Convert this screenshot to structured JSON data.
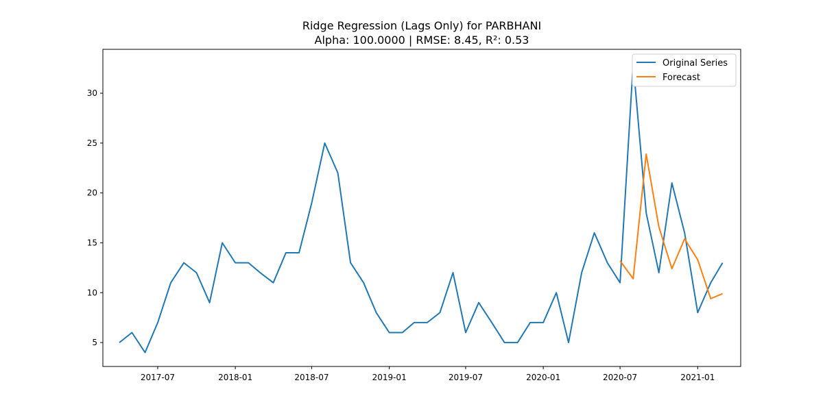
{
  "chart_data": {
    "type": "line",
    "title": "Ridge Regression (Lags Only) for PARBHANI",
    "subtitle": "Alpha: 100.0000 | RMSE: 8.45, R²: 0.53",
    "xlabel": "",
    "ylabel": "",
    "x_ticks": [
      "2017-07",
      "2018-01",
      "2018-07",
      "2019-01",
      "2019-07",
      "2020-01",
      "2020-07",
      "2021-01"
    ],
    "y_ticks": [
      5,
      10,
      15,
      20,
      25,
      30
    ],
    "ylim": [
      2.6,
      34.4
    ],
    "xlim": [
      "2017-02-21",
      "2021-04-13"
    ],
    "grid": false,
    "legend_position": "upper right",
    "series": [
      {
        "name": "Original Series",
        "color": "#1f77b4",
        "x": [
          "2017-04-01",
          "2017-05-01",
          "2017-06-01",
          "2017-07-01",
          "2017-08-01",
          "2017-09-01",
          "2017-10-01",
          "2017-11-01",
          "2017-12-01",
          "2018-01-01",
          "2018-02-01",
          "2018-03-01",
          "2018-04-01",
          "2018-05-01",
          "2018-06-01",
          "2018-07-01",
          "2018-08-01",
          "2018-09-01",
          "2018-10-01",
          "2018-11-01",
          "2018-12-01",
          "2019-01-01",
          "2019-02-01",
          "2019-03-01",
          "2019-04-01",
          "2019-05-01",
          "2019-06-01",
          "2019-07-01",
          "2019-08-01",
          "2019-09-01",
          "2019-10-01",
          "2019-11-01",
          "2019-12-01",
          "2020-01-01",
          "2020-02-01",
          "2020-03-01",
          "2020-04-01",
          "2020-05-01",
          "2020-06-01",
          "2020-07-01",
          "2020-08-01",
          "2020-09-01",
          "2020-10-01",
          "2020-11-01",
          "2020-12-01",
          "2021-01-01",
          "2021-02-01",
          "2021-03-01"
        ],
        "values": [
          5,
          6,
          4,
          7,
          11,
          13,
          12,
          9,
          15,
          13,
          13,
          12,
          11,
          14,
          14,
          19,
          25,
          22,
          13,
          11,
          8,
          6,
          6,
          7,
          7,
          8,
          12,
          6,
          9,
          7,
          5,
          5,
          7,
          7,
          10,
          5,
          12,
          16,
          13,
          11,
          33,
          18,
          12,
          21,
          16,
          8,
          11,
          13
        ]
      },
      {
        "name": "Forecast",
        "color": "#ff7f0e",
        "x": [
          "2020-07-01",
          "2020-08-01",
          "2020-09-01",
          "2020-10-01",
          "2020-11-01",
          "2020-12-01",
          "2021-01-01",
          "2021-02-01",
          "2021-03-01"
        ],
        "values": [
          13.2,
          11.4,
          23.9,
          16.6,
          12.4,
          15.4,
          13.3,
          9.4,
          9.9
        ]
      }
    ]
  }
}
